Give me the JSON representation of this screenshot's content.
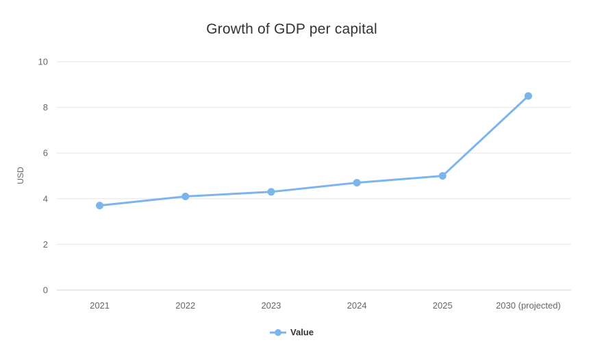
{
  "chart_data": {
    "type": "line",
    "title": "Growth of GDP per capital",
    "xlabel": "",
    "ylabel": "USD",
    "categories": [
      "2021",
      "2022",
      "2023",
      "2024",
      "2025",
      "2030 (projected)"
    ],
    "series": [
      {
        "name": "Value",
        "values": [
          3.7,
          4.1,
          4.3,
          4.7,
          5.0,
          8.5
        ]
      }
    ],
    "ylim": [
      0,
      10
    ],
    "yticks": [
      0,
      2,
      4,
      6,
      8,
      10
    ],
    "grid": true,
    "legend_position": "bottom-center",
    "colors": {
      "series": "#7cb5ec",
      "grid": "#e6e6e6",
      "axis_line": "#ccd1dc",
      "title_text": "#333333",
      "tick_text": "#666666",
      "legend_text": "#333333",
      "background": "#ffffff"
    }
  }
}
